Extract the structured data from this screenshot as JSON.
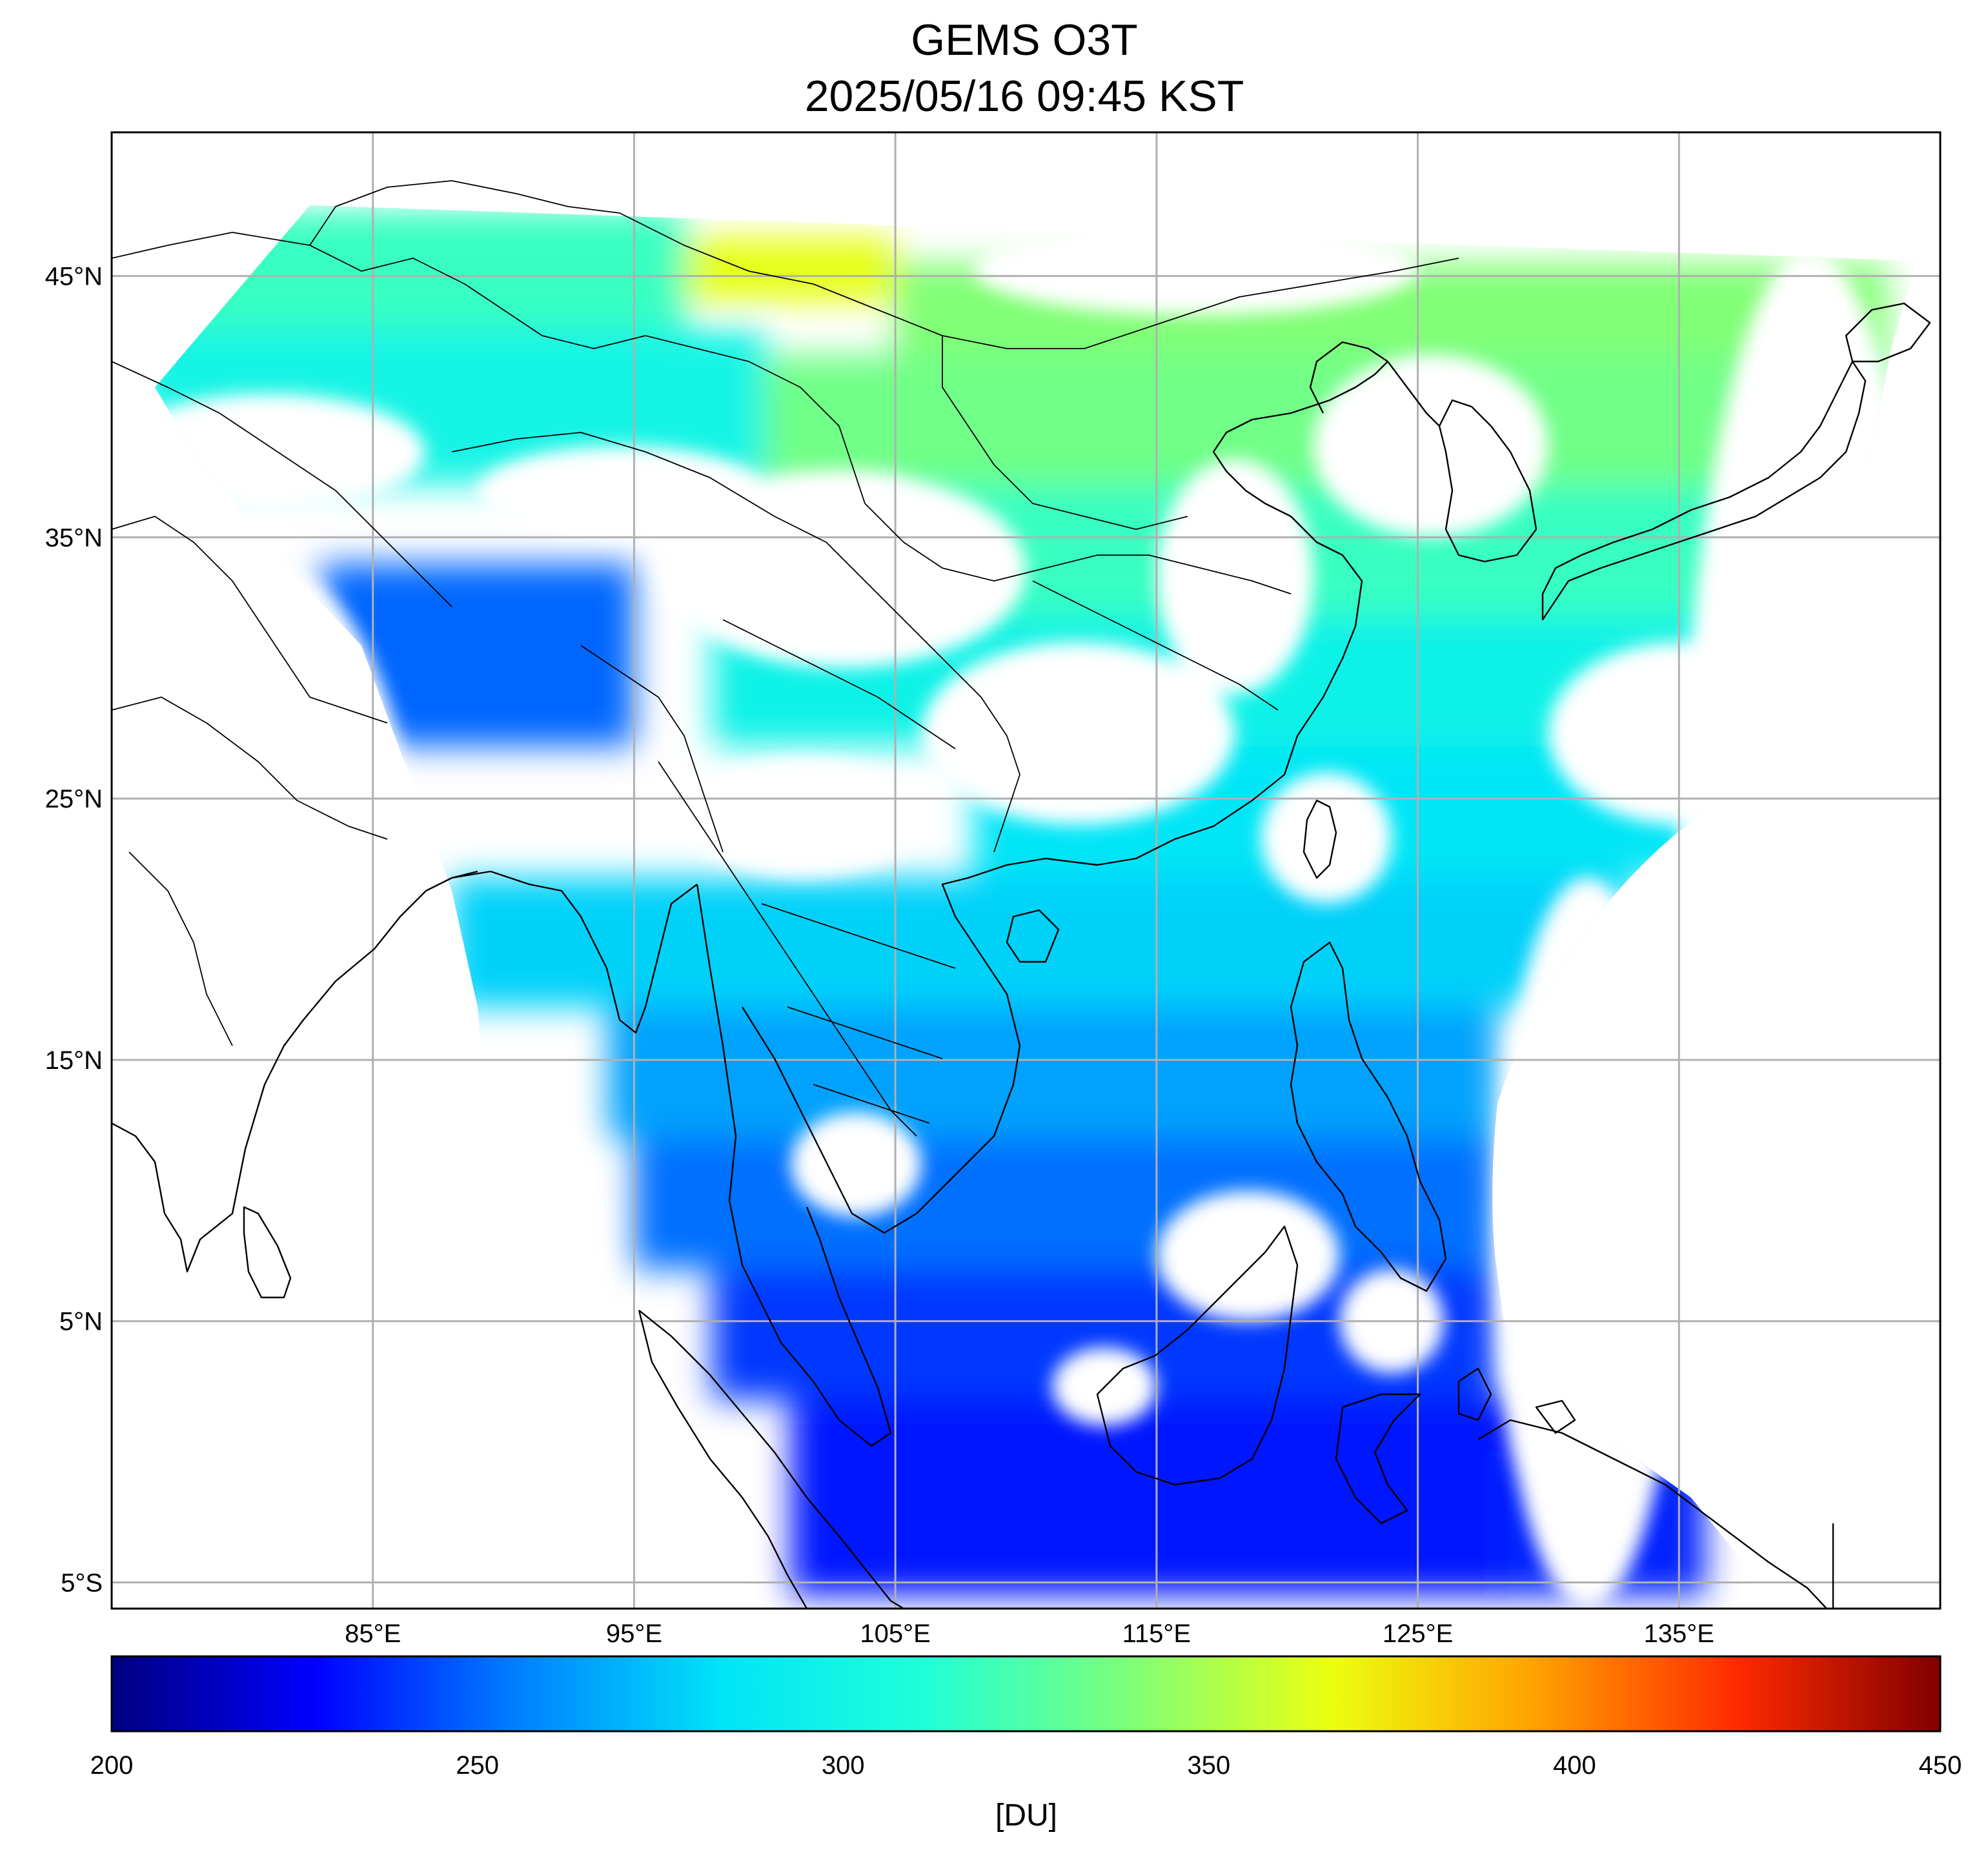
{
  "title": "GEMS O3T",
  "subtitle": "2025/05/16 09:45 KST",
  "map": {
    "lon_range": [
      75,
      145
    ],
    "lat_range": [
      -6,
      50.5
    ],
    "lon_ticks": [
      {
        "value": 85,
        "label": "85°E"
      },
      {
        "value": 95,
        "label": "95°E"
      },
      {
        "value": 105,
        "label": "105°E"
      },
      {
        "value": 115,
        "label": "115°E"
      },
      {
        "value": 125,
        "label": "125°E"
      },
      {
        "value": 135,
        "label": "135°E"
      }
    ],
    "lat_ticks": [
      {
        "value": 45,
        "label": "45°N"
      },
      {
        "value": 35,
        "label": "35°N"
      },
      {
        "value": 25,
        "label": "25°N"
      },
      {
        "value": 15,
        "label": "15°N"
      },
      {
        "value": 5,
        "label": "5°N"
      },
      {
        "value": -5,
        "label": "5°S"
      }
    ],
    "grid": true
  },
  "colorbar": {
    "min": 200,
    "max": 450,
    "ticks": [
      {
        "value": 200,
        "label": "200"
      },
      {
        "value": 250,
        "label": "250"
      },
      {
        "value": 300,
        "label": "300"
      },
      {
        "value": 350,
        "label": "350"
      },
      {
        "value": 400,
        "label": "400"
      },
      {
        "value": 450,
        "label": "450"
      }
    ],
    "unit": "[DU]",
    "colormap": "jet",
    "colors": [
      "#000080",
      "#0000ff",
      "#0080ff",
      "#00e4f8",
      "#20ffd8",
      "#7dff7a",
      "#ecff10",
      "#ffa200",
      "#ff2a00",
      "#800000"
    ]
  },
  "ozone_fields": [
    {
      "lon": [
        76,
        97
      ],
      "lat": [
        43,
        47.5
      ],
      "value": 318
    },
    {
      "lon": [
        97,
        105
      ],
      "lat": [
        44,
        46.5
      ],
      "value": 365
    },
    {
      "lon": [
        105,
        143
      ],
      "lat": [
        41,
        45.5
      ],
      "value": 340
    },
    {
      "lon": [
        76,
        100
      ],
      "lat": [
        37,
        43
      ],
      "value": 300
    },
    {
      "lon": [
        100,
        143
      ],
      "lat": [
        37,
        42
      ],
      "value": 335
    },
    {
      "lon": [
        105,
        141
      ],
      "lat": [
        32,
        37
      ],
      "value": 318
    },
    {
      "lon": [
        83,
        95
      ],
      "lat": [
        27,
        34
      ],
      "value": 250
    },
    {
      "lon": [
        98,
        140
      ],
      "lat": [
        27,
        32
      ],
      "value": 298
    },
    {
      "lon": [
        108,
        136
      ],
      "lat": [
        22,
        27
      ],
      "value": 285
    },
    {
      "lon": [
        88,
        133
      ],
      "lat": [
        17,
        22
      ],
      "value": 278
    },
    {
      "lon": [
        94,
        128
      ],
      "lat": [
        12,
        17
      ],
      "value": 265
    },
    {
      "lon": [
        95,
        128
      ],
      "lat": [
        7,
        12
      ],
      "value": 252
    },
    {
      "lon": [
        98,
        128
      ],
      "lat": [
        2,
        7
      ],
      "value": 240
    },
    {
      "lon": [
        101,
        129
      ],
      "lat": [
        -5.5,
        2
      ],
      "value": 232
    },
    {
      "lon": [
        128,
        136
      ],
      "lat": [
        -5.5,
        0
      ],
      "value": 235
    }
  ],
  "clear_areas": [
    {
      "lon": [
        75,
        87
      ],
      "lat": [
        36,
        40.5
      ]
    },
    {
      "lon": [
        89,
        100
      ],
      "lat": [
        35,
        38.5
      ]
    },
    {
      "lon": [
        75,
        87
      ],
      "lat": [
        4,
        34
      ]
    },
    {
      "lon": [
        86,
        94
      ],
      "lat": [
        -6,
        15
      ]
    },
    {
      "lon": [
        96,
        110
      ],
      "lat": [
        30,
        37.5
      ]
    },
    {
      "lon": [
        97,
        106
      ],
      "lat": [
        22,
        26.5
      ]
    },
    {
      "lon": [
        106,
        118
      ],
      "lat": [
        24,
        31
      ]
    },
    {
      "lon": [
        115,
        121
      ],
      "lat": [
        29,
        38
      ]
    },
    {
      "lon": [
        121,
        130
      ],
      "lat": [
        35,
        42
      ]
    },
    {
      "lon": [
        108,
        125
      ],
      "lat": [
        43.5,
        47
      ]
    },
    {
      "lon": [
        115,
        122
      ],
      "lat": [
        5,
        10
      ]
    },
    {
      "lon": [
        122,
        126
      ],
      "lat": [
        3,
        7
      ]
    },
    {
      "lon": [
        111,
        115
      ],
      "lat": [
        1,
        4
      ]
    },
    {
      "lon": [
        101,
        106
      ],
      "lat": [
        9,
        13
      ]
    },
    {
      "lon": [
        119,
        124
      ],
      "lat": [
        21,
        26
      ]
    },
    {
      "lon": [
        130,
        140
      ],
      "lat": [
        24,
        31
      ]
    },
    {
      "lon": [
        135,
        145
      ],
      "lat": [
        -6,
        46
      ]
    },
    {
      "lon": [
        128,
        135
      ],
      "lat": [
        -6,
        22
      ]
    }
  ],
  "colors": {
    "grid": "#b0b0b0",
    "frame": "#000000",
    "background": "#ffffff"
  }
}
